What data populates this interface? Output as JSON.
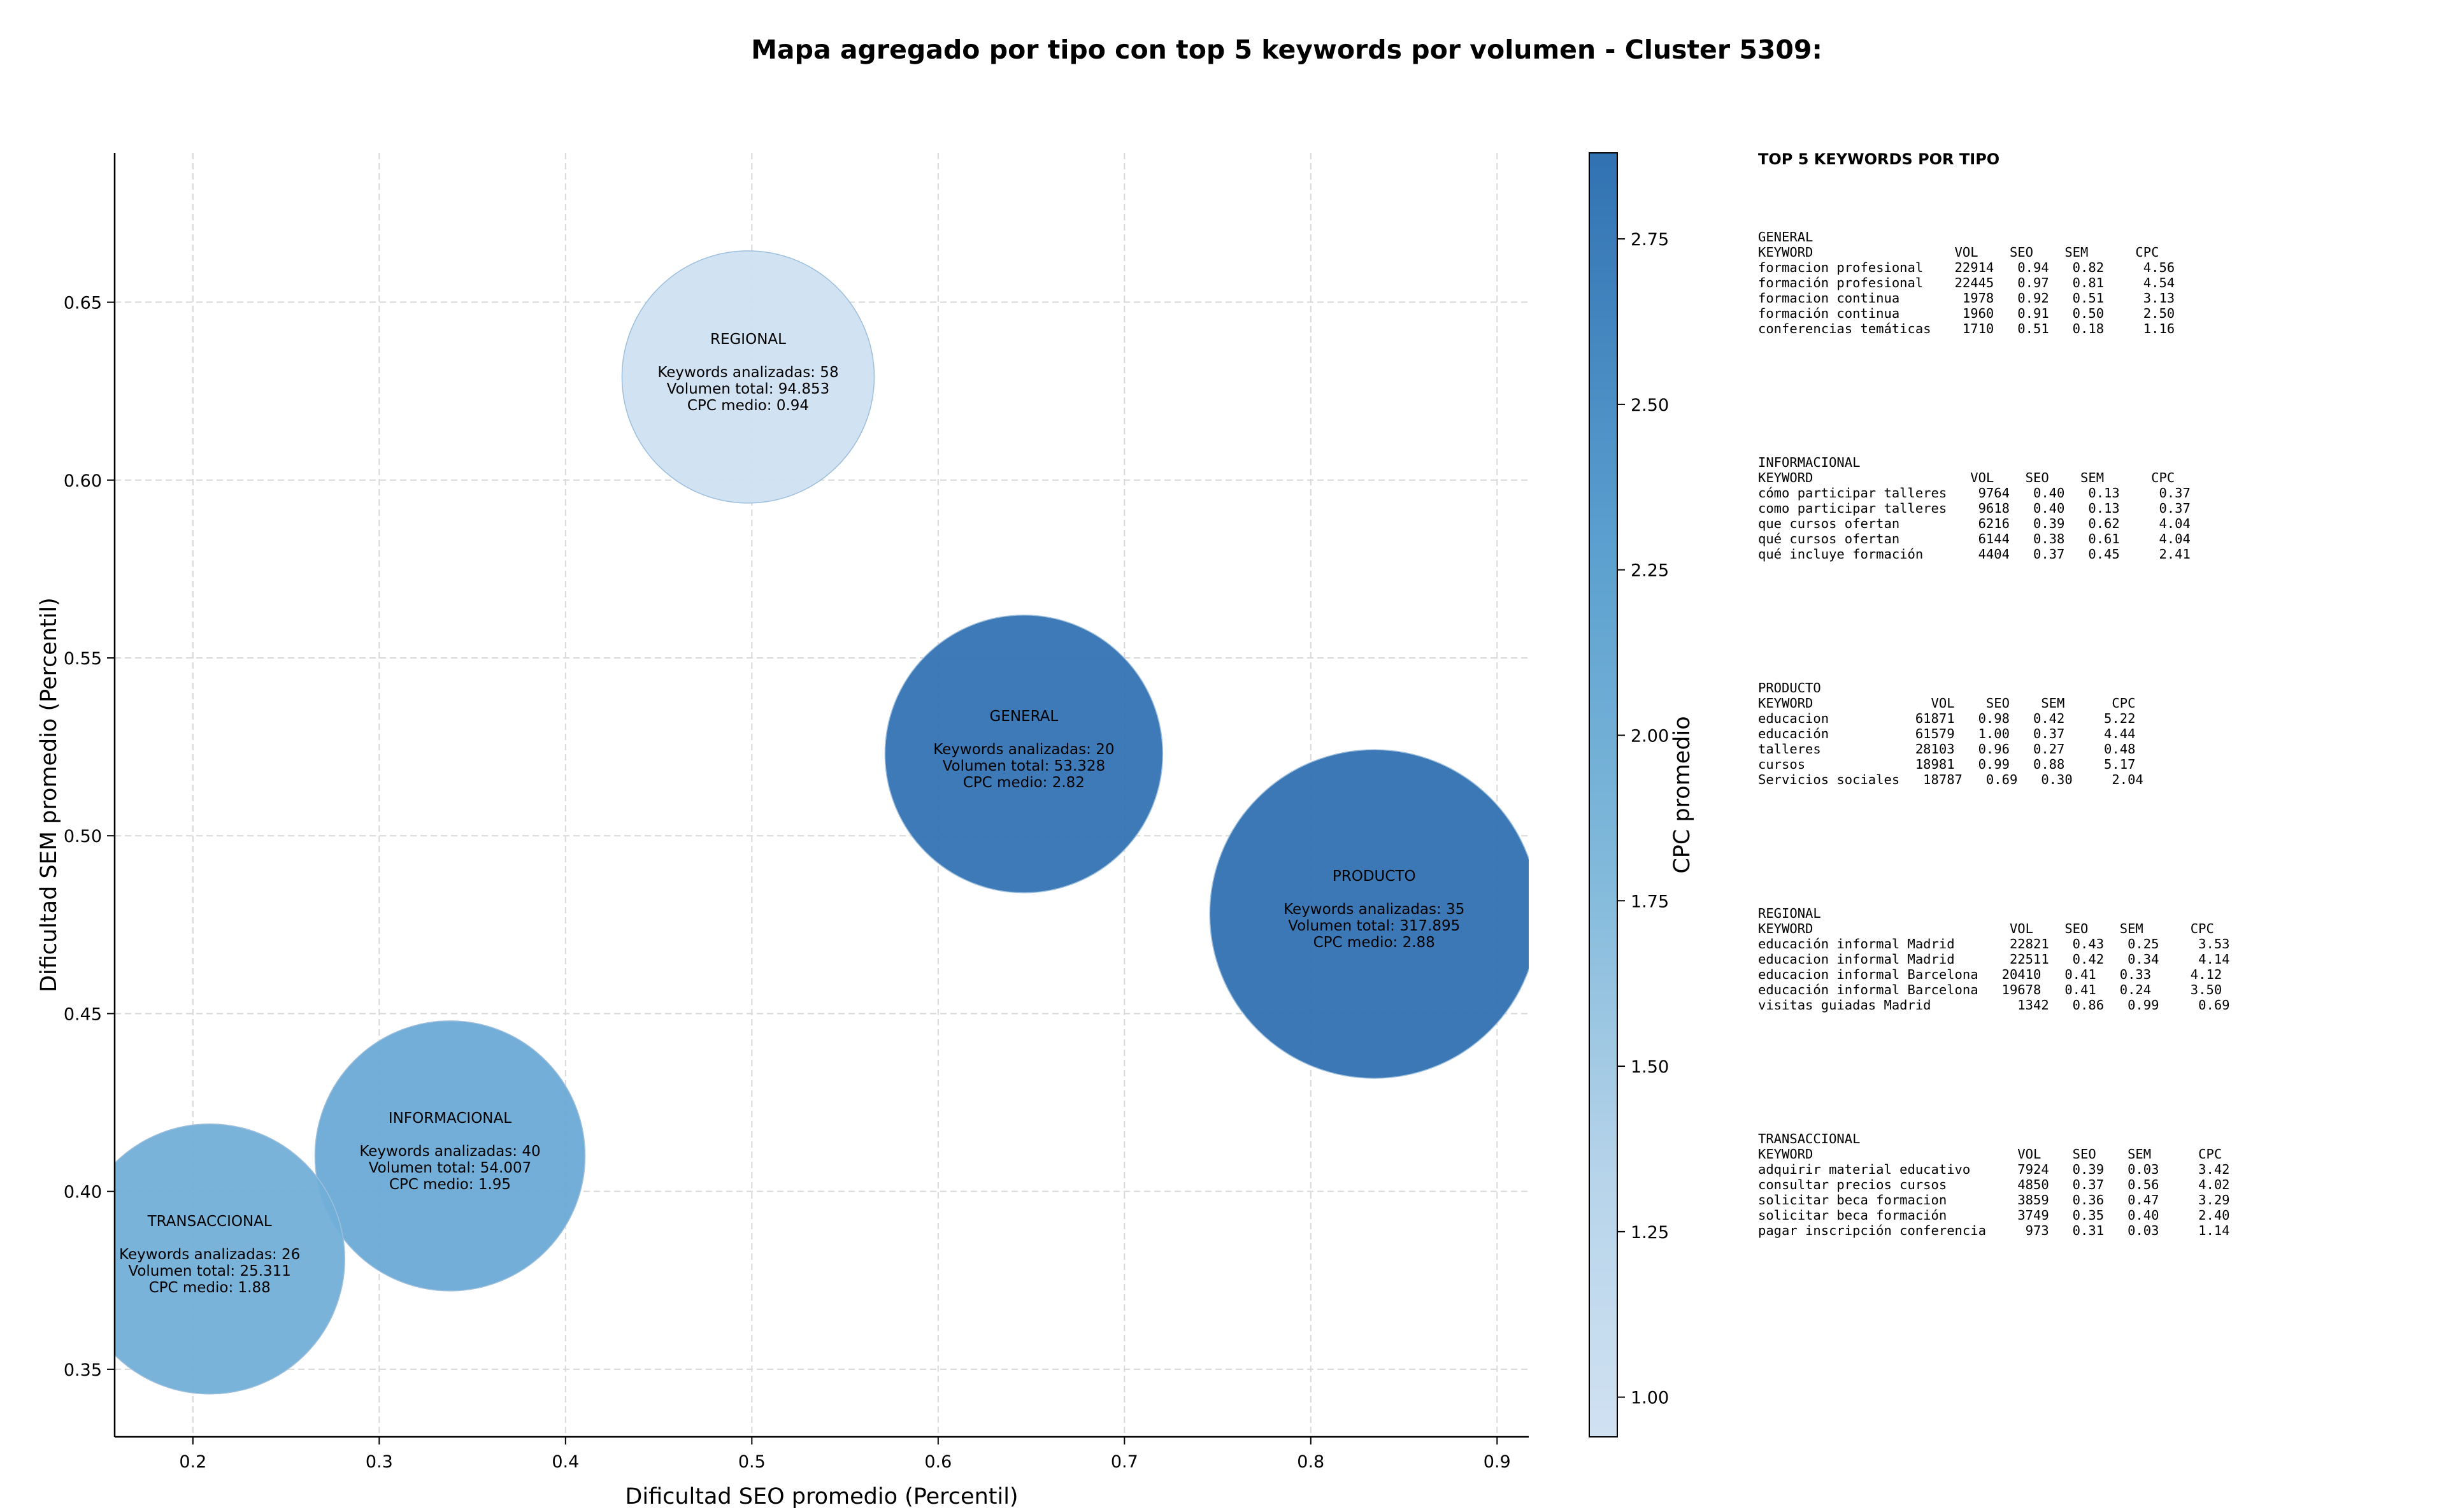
{
  "title": "Mapa agregado por tipo con top 5 keywords por volumen - Cluster 5309:",
  "chart_data": {
    "type": "scatter",
    "subtype": "bubble",
    "xlabel": "Dificultad SEO promedio (Percentil)",
    "ylabel": "Dificultad SEM promedio (Percentil)",
    "xlim": [
      0.158,
      0.917
    ],
    "ylim": [
      0.331,
      0.692
    ],
    "xticks": [
      "0.2",
      "0.3",
      "0.4",
      "0.5",
      "0.6",
      "0.7",
      "0.8",
      "0.9"
    ],
    "yticks": [
      "0.35",
      "0.40",
      "0.45",
      "0.50",
      "0.55",
      "0.60",
      "0.65"
    ],
    "grid": true,
    "colorbar": {
      "label": "CPC promedio",
      "range": [
        0.94,
        2.88
      ],
      "ticks": [
        "1.00",
        "1.25",
        "1.50",
        "1.75",
        "2.00",
        "2.25",
        "2.50",
        "2.75"
      ],
      "colormap": "Blues",
      "color_low": "#cfe1f2",
      "color_high": "#3373b3"
    },
    "points": [
      {
        "name": "REGIONAL",
        "x": 0.498,
        "y": 0.629,
        "keywords_label": "Keywords analizadas: 58",
        "volume_label": "Volumen total: 94.853",
        "cpc_label": "CPC medio: 0.94",
        "volume": 94853,
        "cpc": 0.94,
        "color": "#cfe1f2"
      },
      {
        "name": "GENERAL",
        "x": 0.646,
        "y": 0.523,
        "keywords_label": "Keywords analizadas: 20",
        "volume_label": "Volumen total: 53.328",
        "cpc_label": "CPC medio: 2.82",
        "volume": 53328,
        "cpc": 2.82,
        "color": "#3373b3"
      },
      {
        "name": "PRODUCTO",
        "x": 0.834,
        "y": 0.478,
        "keywords_label": "Keywords analizadas: 35",
        "volume_label": "Volumen total: 317.895",
        "cpc_label": "CPC medio: 2.88",
        "volume": 317895,
        "cpc": 2.88,
        "color": "#3171b2"
      },
      {
        "name": "INFORMACIONAL",
        "x": 0.338,
        "y": 0.41,
        "keywords_label": "Keywords analizadas: 40",
        "volume_label": "Volumen total: 54.007",
        "cpc_label": "CPC medio: 1.95",
        "volume": 54007,
        "cpc": 1.95,
        "color": "#6aaad5"
      },
      {
        "name": "TRANSACCIONAL",
        "x": 0.209,
        "y": 0.381,
        "keywords_label": "Keywords analizadas: 26",
        "volume_label": "Volumen total: 25.311",
        "cpc_label": "CPC medio: 1.88",
        "volume": 25311,
        "cpc": 1.88,
        "color": "#72afd8"
      }
    ]
  },
  "side_panel": {
    "title": "TOP 5 KEYWORDS POR TIPO",
    "blocks": [
      {
        "text": "GENERAL\nKEYWORD                  VOL    SEO    SEM      CPC\nformacion profesional    22914   0.94   0.82     4.56\nformación profesional    22445   0.97   0.81     4.54\nformacion continua        1978   0.92   0.51     3.13\nformación continua        1960   0.91   0.50     2.50\nconferencias temáticas    1710   0.51   0.18     1.16"
      },
      {
        "text": "INFORMACIONAL\nKEYWORD                    VOL    SEO    SEM      CPC\ncómo participar talleres    9764   0.40   0.13     0.37\ncomo participar talleres    9618   0.40   0.13     0.37\nque cursos ofertan          6216   0.39   0.62     4.04\nqué cursos ofertan          6144   0.38   0.61     4.04\nqué incluye formación       4404   0.37   0.45     2.41"
      },
      {
        "text": "PRODUCTO\nKEYWORD               VOL    SEO    SEM      CPC\neducacion           61871   0.98   0.42     5.22\neducación           61579   1.00   0.37     4.44\ntalleres            28103   0.96   0.27     0.48\ncursos              18981   0.99   0.88     5.17\nServicios sociales   18787   0.69   0.30     2.04"
      },
      {
        "text": "REGIONAL\nKEYWORD                         VOL    SEO    SEM      CPC\neducación informal Madrid       22821   0.43   0.25     3.53\neducacion informal Madrid       22511   0.42   0.34     4.14\neducacion informal Barcelona   20410   0.41   0.33     4.12\neducación informal Barcelona   19678   0.41   0.24     3.50\nvisitas guiadas Madrid           1342   0.86   0.99     0.69"
      },
      {
        "text": "TRANSACCIONAL\nKEYWORD                          VOL    SEO    SEM      CPC\nadquirir material educativo      7924   0.39   0.03     3.42\nconsultar precios cursos         4850   0.37   0.56     4.02\nsolicitar beca formacion         3859   0.36   0.47     3.29\nsolicitar beca formación         3749   0.35   0.40     2.40\npagar inscripción conferencia     973   0.31   0.03     1.14"
      }
    ]
  }
}
